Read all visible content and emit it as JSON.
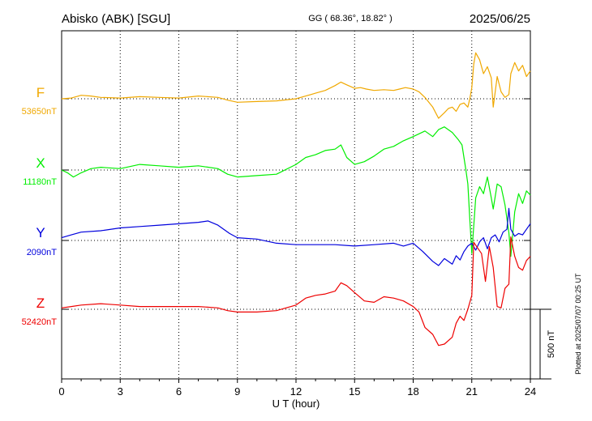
{
  "header": {
    "station": "Abisko (ABK)  [SGU]",
    "coords": "GG ( 68.36°,  18.82° )",
    "date": "2025/06/25"
  },
  "footer": {
    "plotted": "Plotted at 2025/07/07 00:25 UT"
  },
  "chart_data": {
    "type": "line",
    "title": "Abisko (ABK)  [SGU]",
    "xlabel": "U T (hour)",
    "ylabel": "",
    "xlim": [
      0,
      24
    ],
    "xticks": [
      0,
      3,
      6,
      9,
      12,
      15,
      18,
      21,
      24
    ],
    "xtick_labels": [
      "0",
      "3",
      "6",
      "9",
      "12",
      "15",
      "18",
      "21",
      "24"
    ],
    "grid": true,
    "grid_style": "dotted",
    "y_unit": "nT",
    "scale_bar": {
      "value": 500,
      "label": "500 nT"
    },
    "series": [
      {
        "name": "F",
        "baseline_label": "53650nT",
        "baseline_value": 53650,
        "color": "#f0a800",
        "x": [
          0,
          0.5,
          1,
          1.5,
          2,
          3,
          4,
          5,
          6,
          7,
          8,
          8.5,
          9,
          10,
          11,
          12,
          12.5,
          13,
          13.5,
          14,
          14.3,
          14.6,
          15,
          15.3,
          15.6,
          16,
          16.5,
          17,
          17.3,
          17.6,
          18,
          18.3,
          18.6,
          19,
          19.3,
          19.6,
          19.8,
          20,
          20.2,
          20.4,
          20.6,
          20.8,
          20.9,
          21,
          21.1,
          21.2,
          21.4,
          21.6,
          21.8,
          22,
          22.1,
          22.3,
          22.5,
          22.7,
          22.9,
          23,
          23.2,
          23.4,
          23.6,
          23.8,
          24
        ],
        "y": [
          0,
          5,
          25,
          20,
          10,
          5,
          15,
          10,
          5,
          20,
          10,
          -10,
          -25,
          -20,
          -15,
          0,
          20,
          40,
          60,
          95,
          120,
          100,
          75,
          80,
          70,
          60,
          65,
          60,
          70,
          80,
          70,
          50,
          10,
          -60,
          -140,
          -100,
          -70,
          -60,
          -90,
          -40,
          -30,
          -60,
          0,
          80,
          250,
          330,
          280,
          180,
          230,
          150,
          -60,
          160,
          50,
          10,
          30,
          180,
          260,
          200,
          240,
          160,
          200
        ]
      },
      {
        "name": "X",
        "baseline_label": "11180nT",
        "baseline_value": 11180,
        "color": "#00ee00",
        "x": [
          0,
          0.3,
          0.6,
          1,
          1.5,
          2,
          3,
          4,
          5,
          6,
          7,
          8,
          8.5,
          9,
          10,
          11,
          12,
          12.5,
          13,
          13.5,
          14,
          14.3,
          14.6,
          15,
          15.5,
          16,
          16.5,
          17,
          17.5,
          18,
          18.3,
          18.6,
          19,
          19.3,
          19.6,
          20,
          20.3,
          20.5,
          20.7,
          20.8,
          20.9,
          21,
          21.1,
          21.2,
          21.4,
          21.6,
          21.8,
          22,
          22.1,
          22.3,
          22.5,
          22.7,
          22.9,
          23,
          23.2,
          23.4,
          23.6,
          23.8,
          24
        ],
        "y": [
          0,
          -20,
          -50,
          -20,
          10,
          20,
          10,
          40,
          30,
          20,
          30,
          10,
          -30,
          -50,
          -40,
          -30,
          40,
          90,
          110,
          140,
          150,
          180,
          90,
          40,
          60,
          100,
          150,
          170,
          210,
          240,
          260,
          280,
          240,
          290,
          310,
          270,
          220,
          180,
          0,
          -100,
          -350,
          -600,
          -400,
          -200,
          -120,
          -170,
          -50,
          -200,
          -280,
          -100,
          -120,
          -250,
          -450,
          -620,
          -300,
          -170,
          -240,
          -150,
          -180
        ]
      },
      {
        "name": "Y",
        "baseline_label": "2090nT",
        "baseline_value": 2090,
        "color": "#0000dd",
        "x": [
          0,
          0.5,
          1,
          2,
          3,
          4,
          5,
          6,
          7,
          7.5,
          8,
          8.3,
          8.6,
          9,
          10,
          11,
          12,
          13,
          14,
          15,
          16,
          17,
          17.5,
          18,
          18.5,
          19,
          19.3,
          19.6,
          20,
          20.2,
          20.4,
          20.6,
          20.8,
          21,
          21.2,
          21.4,
          21.6,
          21.8,
          22,
          22.2,
          22.4,
          22.6,
          22.8,
          22.9,
          23,
          23.2,
          23.4,
          23.6,
          23.8,
          24
        ],
        "y": [
          20,
          40,
          60,
          70,
          90,
          100,
          110,
          120,
          130,
          140,
          110,
          80,
          50,
          20,
          10,
          -20,
          -30,
          -30,
          -30,
          -40,
          -30,
          -20,
          -40,
          -20,
          -80,
          -150,
          -180,
          -130,
          -170,
          -110,
          -140,
          -80,
          -40,
          -20,
          -70,
          -10,
          20,
          -60,
          20,
          40,
          -10,
          60,
          80,
          230,
          80,
          30,
          50,
          40,
          80,
          120
        ]
      },
      {
        "name": "Z",
        "baseline_label": "52420nT",
        "baseline_value": 52420,
        "color": "#ee0000",
        "x": [
          0,
          0.5,
          1,
          2,
          3,
          4,
          5,
          6,
          7,
          8,
          8.5,
          9,
          10,
          11,
          12,
          12.5,
          13,
          13.5,
          14,
          14.3,
          14.6,
          15,
          15.5,
          16,
          16.5,
          17,
          17.5,
          18,
          18.3,
          18.6,
          19,
          19.3,
          19.6,
          20,
          20.2,
          20.4,
          20.6,
          20.8,
          21,
          21.1,
          21.3,
          21.5,
          21.7,
          21.9,
          22.1,
          22.3,
          22.5,
          22.7,
          22.9,
          23,
          23.2,
          23.4,
          23.6,
          23.8,
          24
        ],
        "y": [
          10,
          20,
          30,
          40,
          30,
          20,
          20,
          20,
          20,
          10,
          -10,
          -20,
          -20,
          -10,
          30,
          80,
          100,
          110,
          130,
          190,
          170,
          120,
          60,
          50,
          90,
          80,
          60,
          20,
          -20,
          -130,
          -180,
          -260,
          -250,
          -200,
          -100,
          -50,
          -80,
          0,
          100,
          480,
          440,
          400,
          200,
          450,
          300,
          20,
          10,
          150,
          180,
          520,
          380,
          300,
          280,
          350,
          380
        ]
      }
    ]
  }
}
